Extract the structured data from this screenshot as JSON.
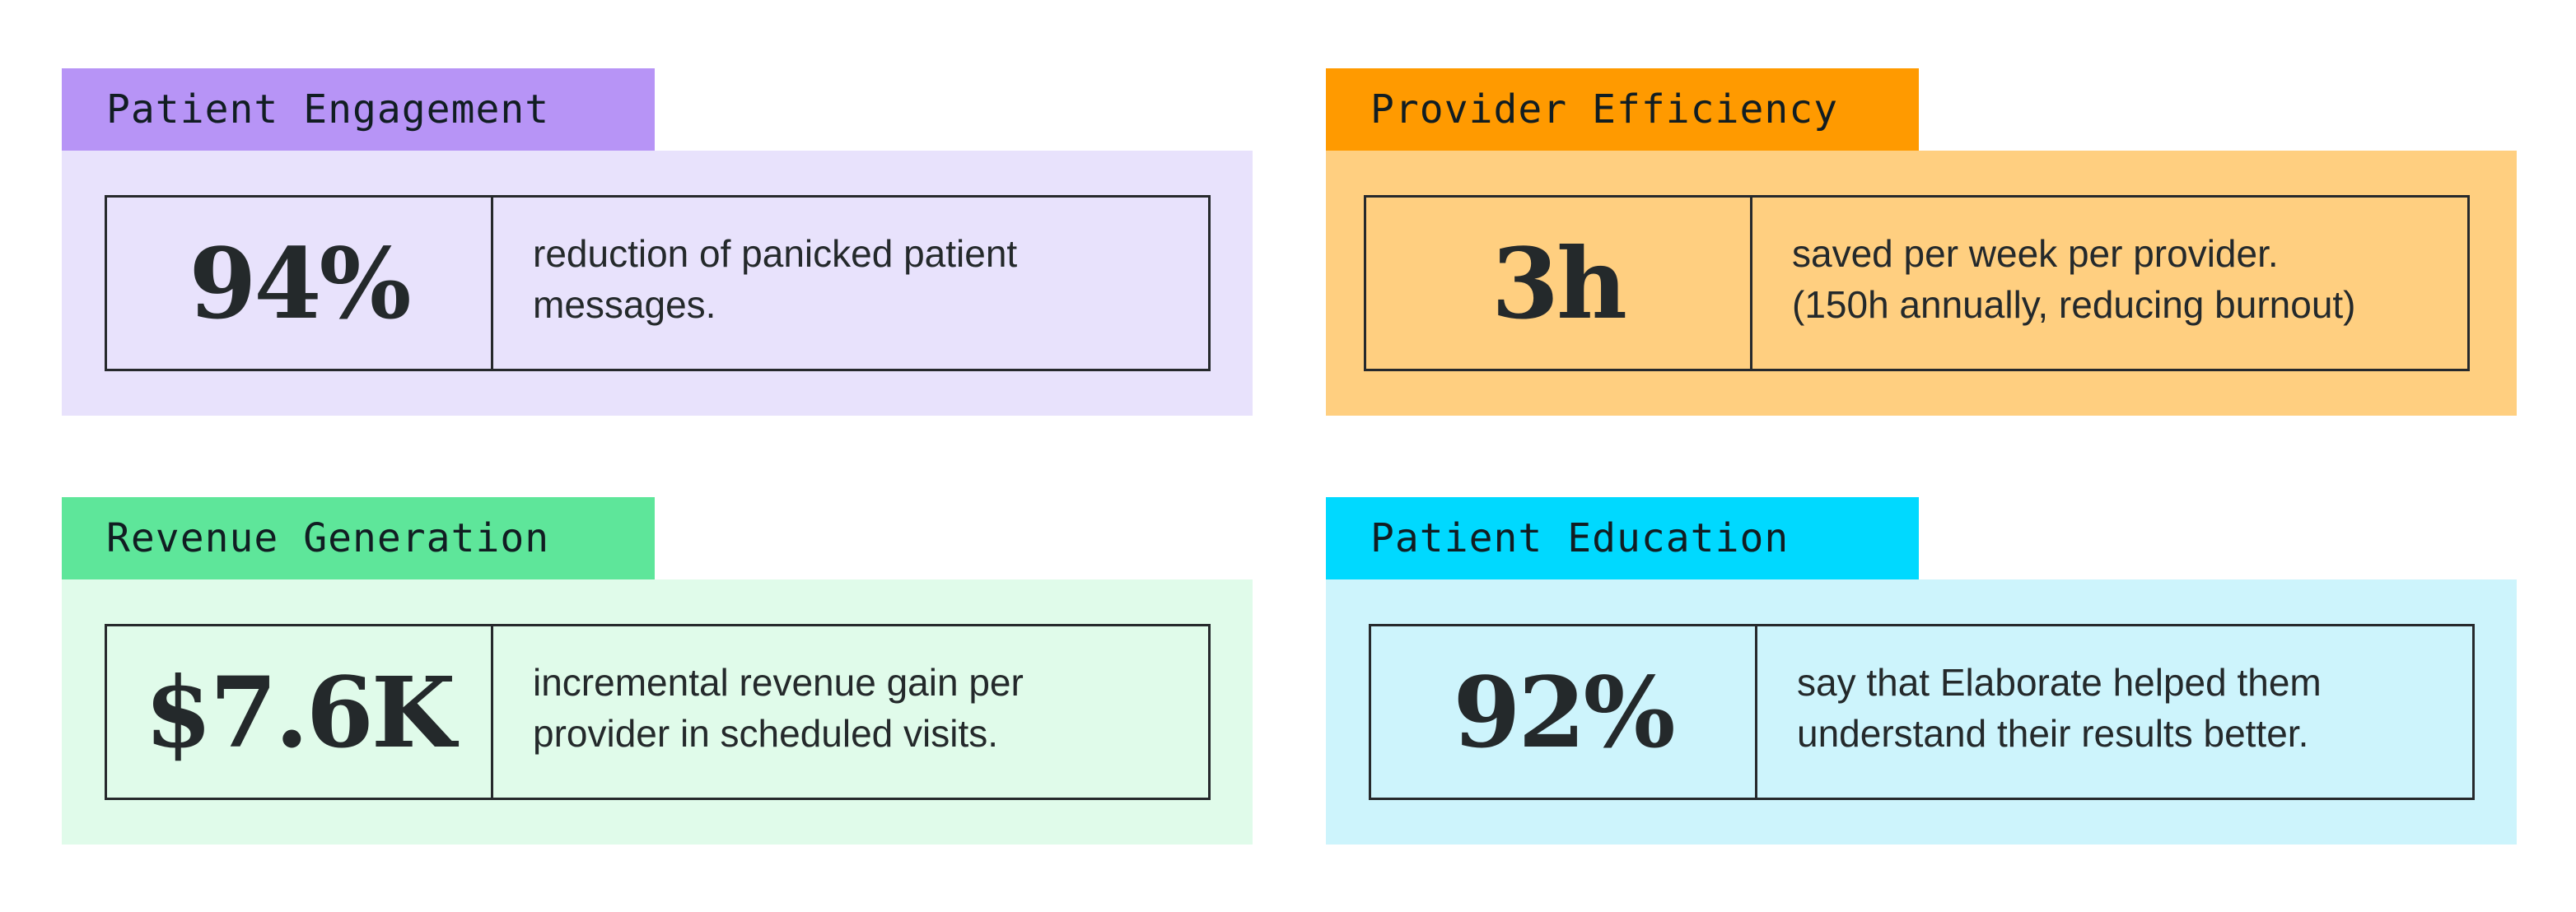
{
  "cards": [
    {
      "label": "Patient Engagement",
      "stat": "94%",
      "line1": "reduction of panicked patient",
      "line2": "messages.",
      "tab_color": "#b794f6",
      "body_color": "#e8e2fc"
    },
    {
      "label": "Provider Efficiency",
      "stat": "3h",
      "line1": "saved per week per provider.",
      "line2": "(150h annually, reducing burnout)",
      "tab_color": "#ff9a00",
      "body_color": "#ffcf80"
    },
    {
      "label": "Revenue Generation",
      "stat": "$7.6K",
      "line1": "incremental revenue gain per",
      "line2": "provider in scheduled visits.",
      "tab_color": "#5ee69a",
      "body_color": "#e0fbea"
    },
    {
      "label": "Patient Education",
      "stat": "92%",
      "line1": "say that Elaborate helped them",
      "line2": "understand their results better.",
      "tab_color": "#00d9ff",
      "body_color": "#cdf4fc"
    }
  ]
}
